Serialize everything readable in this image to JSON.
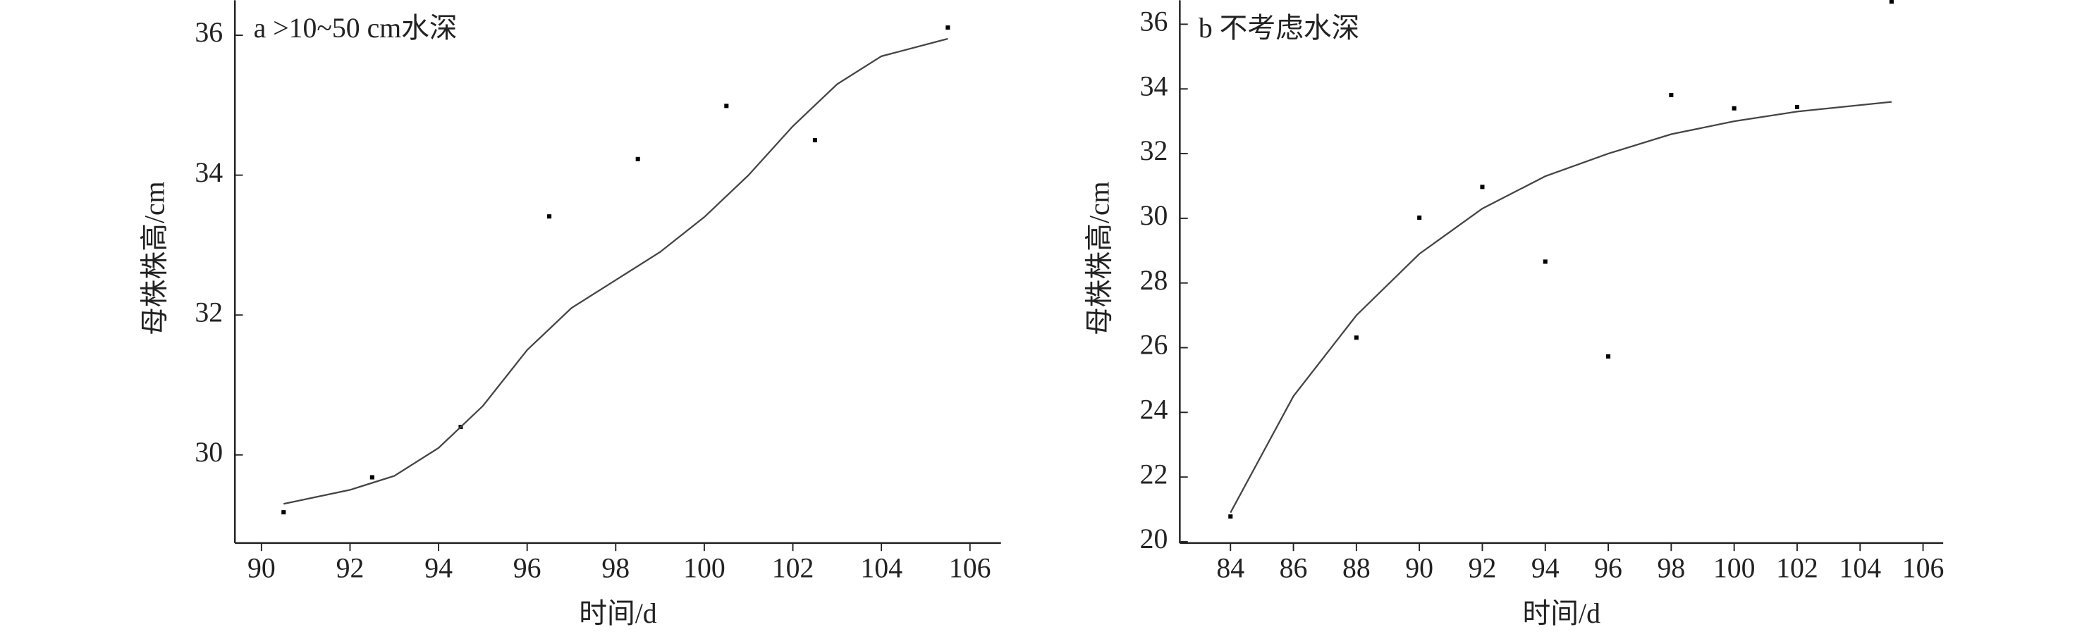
{
  "chart_data": [
    {
      "type": "scatter",
      "title": "a >10~50 cm水深",
      "x_label": "时间/d",
      "y_label": "母株株高/cm",
      "xlim": [
        89.4,
        106.7
      ],
      "ylim": [
        28.74,
        36.5
      ],
      "xticks": [
        90,
        92,
        94,
        96,
        98,
        100,
        102,
        104,
        106
      ],
      "yticks": [
        30,
        32,
        34,
        36
      ],
      "series": [
        {
          "mode": "markers",
          "color": "#000000",
          "x": [
            90.5,
            92.5,
            94.5,
            96.5,
            98.5,
            100.5,
            102.5,
            105.5
          ],
          "values": [
            29.18,
            29.68,
            30.4,
            33.41,
            34.23,
            34.99,
            34.5,
            36.11
          ]
        },
        {
          "mode": "line",
          "color": "#444444",
          "x": [
            90.5,
            92,
            93,
            94,
            95,
            96,
            97,
            98,
            99,
            100,
            101,
            102,
            103,
            104,
            105.5
          ],
          "values": [
            29.3,
            29.5,
            29.7,
            30.1,
            30.7,
            31.5,
            32.1,
            32.5,
            32.9,
            33.4,
            34.0,
            34.7,
            35.3,
            35.7,
            35.95
          ]
        }
      ]
    },
    {
      "type": "scatter",
      "title": "b 不考虑水深",
      "x_label": "时间/d",
      "y_label": "母株株高/cm",
      "xlim": [
        82.39,
        106.64
      ],
      "ylim": [
        19.96,
        36.74
      ],
      "xticks": [
        84,
        86,
        88,
        90,
        92,
        94,
        96,
        98,
        100,
        102,
        104,
        106
      ],
      "yticks": [
        20,
        22,
        24,
        26,
        28,
        30,
        32,
        34,
        36
      ],
      "series": [
        {
          "mode": "markers",
          "color": "#000000",
          "x": [
            84,
            88,
            90,
            92,
            94,
            96,
            98,
            100,
            102,
            105
          ],
          "values": [
            20.78,
            26.31,
            30.02,
            30.97,
            28.66,
            25.73,
            33.81,
            33.4,
            33.44,
            36.7
          ]
        },
        {
          "mode": "line",
          "color": "#444444",
          "x": [
            84,
            86,
            88,
            90,
            92,
            94,
            96,
            98,
            100,
            102,
            105
          ],
          "values": [
            20.9,
            24.5,
            27.0,
            28.9,
            30.3,
            31.3,
            32.0,
            32.6,
            33.0,
            33.3,
            33.6
          ]
        }
      ]
    }
  ]
}
